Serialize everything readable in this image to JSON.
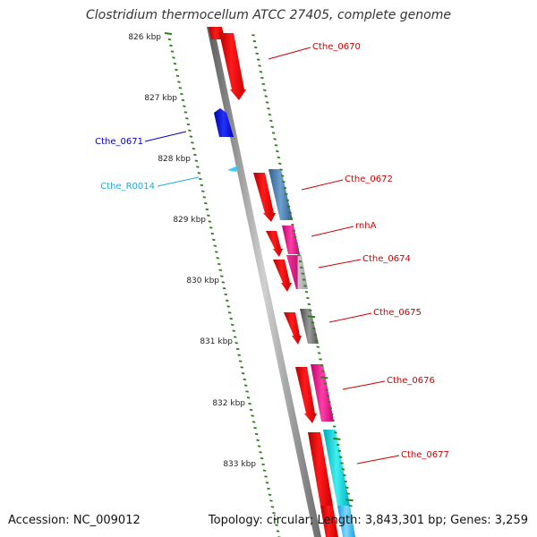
{
  "title": "Clostridium thermocellum ATCC 27405, complete genome",
  "footer": {
    "accession": "Accession: NC_009012",
    "summary": "Topology: circular; Length: 3,843,301 bp; Genes: 3,259"
  },
  "colors": {
    "backbone": "#8a8a8a",
    "tick": "#2e7d1e",
    "red_label": "#cc0000",
    "blue_label": "#0000cc",
    "cyan_label": "#22aadd"
  },
  "kbp_labels": [
    "826 kbp",
    "827 kbp",
    "828 kbp",
    "829 kbp",
    "830 kbp",
    "831 kbp",
    "832 kbp",
    "833 kbp"
  ],
  "gene_labels": [
    {
      "text": "Cthe_0670",
      "color": "#cc0000"
    },
    {
      "text": "Cthe_0671",
      "color": "#0000cc"
    },
    {
      "text": "Cthe_R0014",
      "color": "#22aadd"
    },
    {
      "text": "Cthe_0672",
      "color": "#cc0000"
    },
    {
      "text": "rnhA",
      "color": "#cc0000"
    },
    {
      "text": "Cthe_0674",
      "color": "#cc0000"
    },
    {
      "text": "Cthe_0675",
      "color": "#cc0000"
    },
    {
      "text": "Cthe_0676",
      "color": "#cc0000"
    },
    {
      "text": "Cthe_0677",
      "color": "#cc0000"
    }
  ]
}
